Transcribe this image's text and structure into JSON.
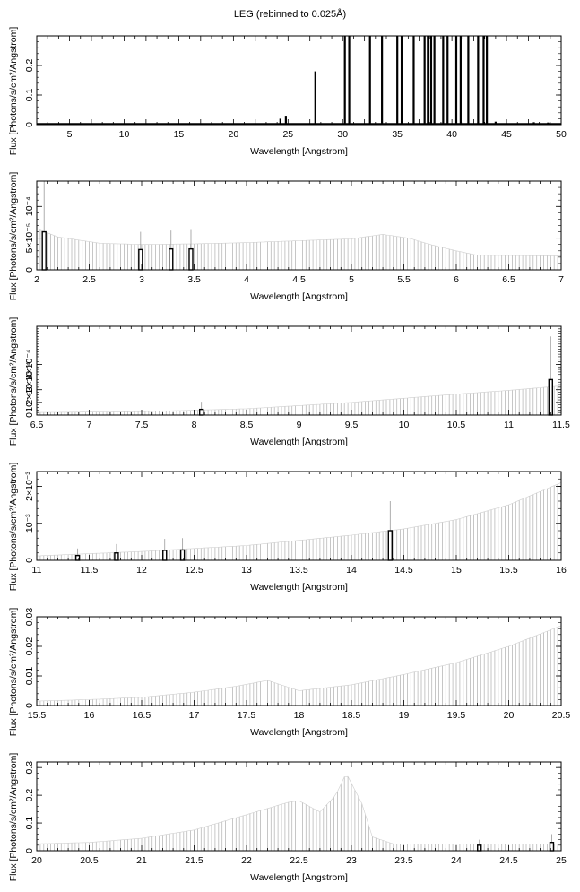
{
  "figure": {
    "title": "LEG (rebinned to 0.025Å)"
  },
  "chart_data": [
    {
      "type": "bar",
      "xlabel": "Wavelength [Angstrom]",
      "ylabel": "Flux [Photons/s/cm²/Angstrom]",
      "xlim": [
        2,
        50
      ],
      "ylim": [
        0,
        0.3
      ],
      "xticks": [
        "5",
        "10",
        "15",
        "20",
        "25",
        "30",
        "35",
        "40",
        "45",
        "50"
      ],
      "yticks": [
        "0",
        "0.1",
        "0.2"
      ],
      "baseline": 0.003,
      "bars": [
        [
          24.3,
          0.02
        ],
        [
          24.8,
          0.03
        ],
        [
          27.5,
          0.18
        ],
        [
          30.2,
          0.3
        ],
        [
          30.6,
          0.3
        ],
        [
          32.5,
          0.3
        ],
        [
          33.6,
          0.3
        ],
        [
          35.0,
          0.3
        ],
        [
          35.4,
          0.3
        ],
        [
          36.5,
          0.3
        ],
        [
          37.5,
          0.3
        ],
        [
          37.8,
          0.3
        ],
        [
          38.1,
          0.3
        ],
        [
          38.4,
          0.3
        ],
        [
          39.2,
          0.3
        ],
        [
          39.6,
          0.3
        ],
        [
          40.4,
          0.3
        ],
        [
          40.8,
          0.3
        ],
        [
          41.5,
          0.3
        ],
        [
          42.4,
          0.3
        ],
        [
          42.9,
          0.3
        ],
        [
          43.2,
          0.3
        ],
        [
          44.0,
          0.01
        ],
        [
          47.5,
          0.008
        ],
        [
          48.8,
          0.007
        ]
      ],
      "errors": []
    },
    {
      "type": "bar",
      "xlabel": "Wavelength [Angstrom]",
      "ylabel": "Flux [Photons/s/cm²/Angstrom]",
      "xlim": [
        2,
        7
      ],
      "ylim": [
        0,
        0.00014
      ],
      "xticks": [
        "2",
        "2.5",
        "3",
        "3.5",
        "4",
        "4.5",
        "5",
        "5.5",
        "6",
        "6.5",
        "7"
      ],
      "yticks": [
        "0",
        "5×10⁻⁵",
        "10⁻⁴"
      ],
      "envelope": [
        [
          2.0,
          6.5e-05
        ],
        [
          2.2,
          5.2e-05
        ],
        [
          2.6,
          4.2e-05
        ],
        [
          3.0,
          4e-05
        ],
        [
          3.5,
          4.1e-05
        ],
        [
          4.0,
          4.3e-05
        ],
        [
          4.5,
          4.6e-05
        ],
        [
          5.0,
          4.9e-05
        ],
        [
          5.3,
          5.6e-05
        ],
        [
          5.55,
          5e-05
        ],
        [
          5.75,
          4e-05
        ],
        [
          6.0,
          3e-05
        ],
        [
          6.2,
          2.3e-05
        ],
        [
          7.0,
          2.2e-05
        ]
      ],
      "bars": [
        [
          2.07,
          6e-05
        ],
        [
          2.99,
          3.2e-05
        ],
        [
          3.28,
          3.3e-05
        ],
        [
          3.47,
          3.3e-05
        ]
      ],
      "errors": [
        [
          2.07,
          0.00014
        ],
        [
          2.99,
          6e-05
        ],
        [
          3.28,
          6.2e-05
        ],
        [
          3.47,
          6.3e-05
        ]
      ]
    },
    {
      "type": "bar",
      "xlabel": "Wavelength [Angstrom]",
      "ylabel": "Flux [Photons/s/cm²/Angstrom]",
      "xlim": [
        6.5,
        11.5
      ],
      "ylim": [
        0,
        0.0007
      ],
      "xticks": [
        "6.5",
        "7",
        "7.5",
        "8",
        "8.5",
        "9",
        "9.5",
        "10",
        "10.5",
        "11",
        "11.5"
      ],
      "yticks": [
        "0",
        "10⁻⁴",
        "2×10⁻⁴",
        "3×10⁻⁴",
        "4×10⁻⁴"
      ],
      "envelope": [
        [
          6.5,
          2e-05
        ],
        [
          7.5,
          2.7e-05
        ],
        [
          8.5,
          5e-05
        ],
        [
          9.5,
          0.0001
        ],
        [
          10.5,
          0.000165
        ],
        [
          11.0,
          0.000195
        ],
        [
          11.5,
          0.00023
        ]
      ],
      "bars": [
        [
          8.07,
          4.5e-05
        ],
        [
          11.4,
          0.00028
        ]
      ],
      "errors": [
        [
          8.07,
          0.000105
        ],
        [
          11.4,
          0.00062
        ]
      ]
    },
    {
      "type": "bar",
      "xlabel": "Wavelength [Angstrom]",
      "ylabel": "Flux [Photons/s/cm²/Angstrom]",
      "xlim": [
        11,
        16
      ],
      "ylim": [
        0,
        0.0024
      ],
      "xticks": [
        "11",
        "11.5",
        "12",
        "12.5",
        "13",
        "13.5",
        "14",
        "14.5",
        "15",
        "15.5",
        "16"
      ],
      "yticks": [
        "0",
        "10⁻³",
        "2×10⁻³"
      ],
      "envelope": [
        [
          11.0,
          0.00012
        ],
        [
          12.0,
          0.00024
        ],
        [
          13.0,
          0.0004
        ],
        [
          14.0,
          0.00068
        ],
        [
          14.5,
          0.00085
        ],
        [
          15.0,
          0.0011
        ],
        [
          15.5,
          0.0015
        ],
        [
          16.0,
          0.0021
        ]
      ],
      "bars": [
        [
          11.39,
          0.00013
        ],
        [
          11.76,
          0.0002
        ],
        [
          12.22,
          0.00027
        ],
        [
          12.39,
          0.00028
        ],
        [
          14.37,
          0.0008
        ]
      ],
      "errors": [
        [
          11.39,
          0.00032
        ],
        [
          11.76,
          0.00044
        ],
        [
          12.22,
          0.00058
        ],
        [
          12.39,
          0.0006
        ],
        [
          14.37,
          0.0016
        ]
      ]
    },
    {
      "type": "bar",
      "xlabel": "Wavelength [Angstrom]",
      "ylabel": "Flux [Photons/s/cm²/Angstrom]",
      "xlim": [
        15.5,
        20.5
      ],
      "ylim": [
        0,
        0.03
      ],
      "xticks": [
        "15.5",
        "16",
        "16.5",
        "17",
        "17.5",
        "18",
        "18.5",
        "19",
        "19.5",
        "20",
        "20.5"
      ],
      "yticks": [
        "0",
        "0.01",
        "0.02",
        "0.03"
      ],
      "envelope": [
        [
          15.5,
          0.0015
        ],
        [
          16.0,
          0.002
        ],
        [
          16.5,
          0.0028
        ],
        [
          17.0,
          0.0045
        ],
        [
          17.4,
          0.0065
        ],
        [
          17.7,
          0.0085
        ],
        [
          18.0,
          0.005
        ],
        [
          18.5,
          0.007
        ],
        [
          19.0,
          0.0105
        ],
        [
          19.5,
          0.0145
        ],
        [
          20.0,
          0.02
        ],
        [
          20.5,
          0.027
        ]
      ],
      "bars": [],
      "errors": []
    },
    {
      "type": "bar",
      "xlabel": "Wavelength [Angstrom]",
      "ylabel": "Flux [Photons/s/cm²/Angstrom]",
      "xlim": [
        20,
        25
      ],
      "ylim": [
        0,
        0.32
      ],
      "xticks": [
        "20",
        "20.5",
        "21",
        "21.5",
        "22",
        "22.5",
        "23",
        "23.5",
        "24",
        "24.5",
        "25"
      ],
      "yticks": [
        "0",
        "0.1",
        "0.2",
        "0.3"
      ],
      "envelope": [
        [
          20.0,
          0.025
        ],
        [
          20.5,
          0.03
        ],
        [
          21.0,
          0.045
        ],
        [
          21.5,
          0.075
        ],
        [
          22.0,
          0.13
        ],
        [
          22.4,
          0.175
        ],
        [
          22.5,
          0.18
        ],
        [
          22.7,
          0.14
        ],
        [
          22.85,
          0.2
        ],
        [
          22.95,
          0.28
        ],
        [
          23.1,
          0.17
        ],
        [
          23.2,
          0.05
        ],
        [
          23.4,
          0.025
        ],
        [
          25.0,
          0.025
        ]
      ],
      "bars": [
        [
          24.22,
          0.02
        ],
        [
          24.91,
          0.03
        ]
      ],
      "errors": [
        [
          24.22,
          0.04
        ],
        [
          24.91,
          0.06
        ]
      ]
    }
  ]
}
